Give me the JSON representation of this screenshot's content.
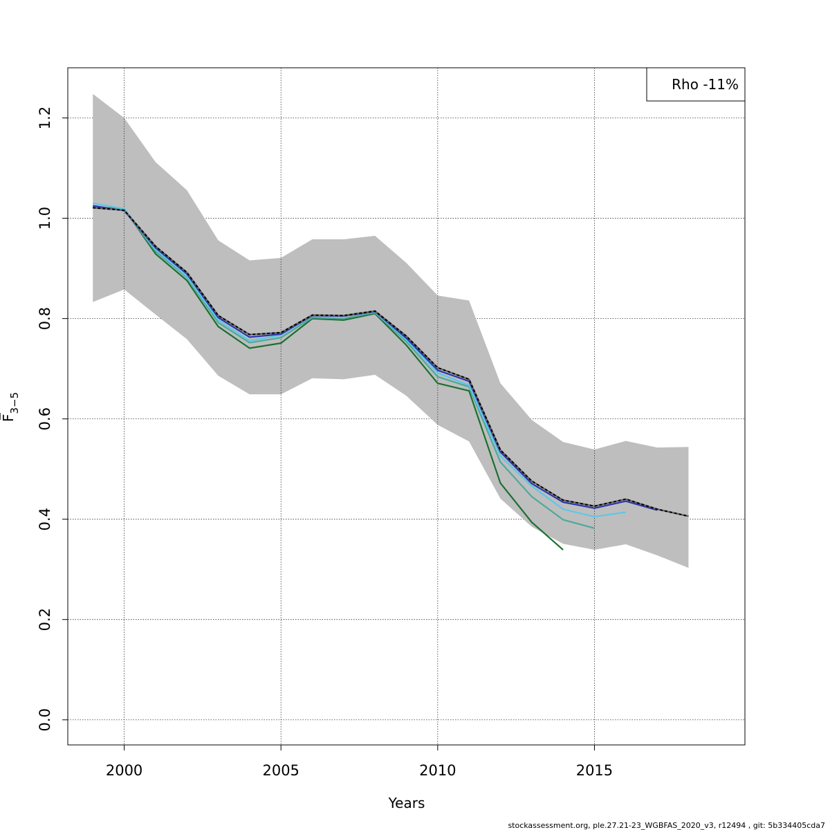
{
  "chart_data": {
    "type": "line",
    "xlabel": "Years",
    "ylabel_main": "F",
    "ylabel_sub": "3−5",
    "xlim": [
      1998.2,
      2019.8
    ],
    "ylim": [
      -0.05,
      1.3
    ],
    "xticks": [
      2000,
      2005,
      2010,
      2015
    ],
    "yticks": [
      0.0,
      0.2,
      0.4,
      0.6,
      0.8,
      1.0,
      1.2
    ],
    "ytick_labels": [
      "0.0",
      "0.2",
      "0.4",
      "0.6",
      "0.8",
      "1.0",
      "1.2"
    ],
    "grid": true,
    "legend": {
      "position": "top-right",
      "text": "Rho -11%"
    },
    "band": {
      "x": [
        1999,
        2000,
        2001,
        2002,
        2003,
        2004,
        2005,
        2006,
        2007,
        2008,
        2009,
        2010,
        2011,
        2012,
        2013,
        2014,
        2015,
        2016,
        2017,
        2018
      ],
      "upper": [
        1.248,
        1.2,
        1.112,
        1.056,
        0.956,
        0.916,
        0.921,
        0.958,
        0.958,
        0.965,
        0.911,
        0.846,
        0.836,
        0.671,
        0.598,
        0.554,
        0.539,
        0.556,
        0.543,
        0.544
      ],
      "lower": [
        0.833,
        0.858,
        0.808,
        0.759,
        0.686,
        0.649,
        0.649,
        0.681,
        0.679,
        0.688,
        0.646,
        0.588,
        0.555,
        0.441,
        0.385,
        0.351,
        0.339,
        0.35,
        0.328,
        0.303
      ]
    },
    "series": [
      {
        "color": "#1b6f30",
        "x": [
          1999,
          2000,
          2001,
          2002,
          2003,
          2004,
          2005,
          2006,
          2007,
          2008,
          2009,
          2010,
          2011,
          2012,
          2013,
          2014
        ],
        "values": [
          1.022,
          1.019,
          0.929,
          0.876,
          0.784,
          0.741,
          0.751,
          0.8,
          0.797,
          0.81,
          0.747,
          0.671,
          0.656,
          0.472,
          0.394,
          0.339
        ]
      },
      {
        "color": "#4fa89b",
        "x": [
          1999,
          2000,
          2001,
          2002,
          2003,
          2004,
          2005,
          2006,
          2007,
          2008,
          2009,
          2010,
          2011,
          2012,
          2013,
          2014,
          2015
        ],
        "values": [
          1.024,
          1.017,
          0.934,
          0.882,
          0.792,
          0.752,
          0.762,
          0.802,
          0.8,
          0.812,
          0.754,
          0.684,
          0.664,
          0.514,
          0.445,
          0.399,
          0.382
        ]
      },
      {
        "color": "#5bc8e8",
        "x": [
          1999,
          2000,
          2001,
          2002,
          2003,
          2004,
          2005,
          2006,
          2007,
          2008,
          2009,
          2010,
          2011,
          2012,
          2013,
          2014,
          2015,
          2016
        ],
        "values": [
          1.03,
          1.019,
          0.938,
          0.884,
          0.797,
          0.756,
          0.767,
          0.806,
          0.806,
          0.813,
          0.758,
          0.692,
          0.667,
          0.526,
          0.466,
          0.42,
          0.405,
          0.414
        ]
      },
      {
        "color": "#2b34a8",
        "x": [
          1999,
          2000,
          2001,
          2002,
          2003,
          2004,
          2005,
          2006,
          2007,
          2008,
          2009,
          2010,
          2011,
          2012,
          2013,
          2014,
          2015,
          2016,
          2017
        ],
        "values": [
          1.025,
          1.015,
          0.941,
          0.889,
          0.802,
          0.763,
          0.769,
          0.806,
          0.805,
          0.814,
          0.761,
          0.697,
          0.675,
          0.534,
          0.471,
          0.434,
          0.422,
          0.436,
          0.418
        ]
      },
      {
        "color": "#000000",
        "dashed": true,
        "x": [
          1999,
          2000,
          2001,
          2002,
          2003,
          2004,
          2005,
          2006,
          2007,
          2008,
          2009,
          2010,
          2011,
          2012,
          2013,
          2014,
          2015,
          2016,
          2017,
          2018
        ],
        "values": [
          1.021,
          1.016,
          0.944,
          0.892,
          0.806,
          0.768,
          0.772,
          0.807,
          0.806,
          0.815,
          0.765,
          0.702,
          0.679,
          0.538,
          0.476,
          0.438,
          0.426,
          0.44,
          0.42,
          0.406
        ]
      }
    ]
  },
  "footer": "stockassessment.org, ple.27.21-23_WGBFAS_2020_v3, r12494 , git: 5b334405cda7"
}
